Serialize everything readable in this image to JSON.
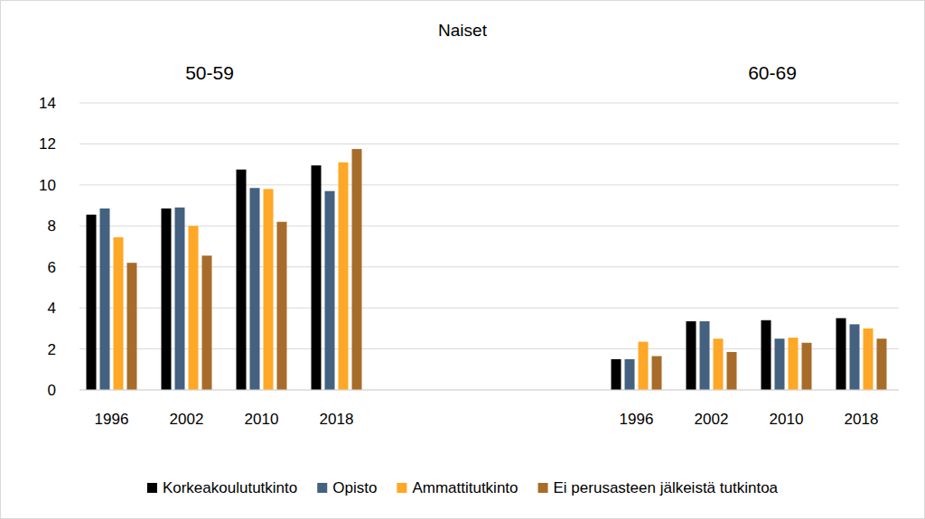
{
  "chart_data": {
    "type": "bar",
    "title": "Naiset",
    "annotations": [
      "50-59",
      "60-69"
    ],
    "categories": [
      "1996",
      "2002",
      "2010",
      "2018",
      null,
      null,
      null,
      "1996",
      "2002",
      "2010",
      "2018"
    ],
    "series": [
      {
        "name": "Korkeakoulututkinto",
        "color": "#000000",
        "values": [
          8.55,
          8.85,
          10.75,
          10.95,
          null,
          null,
          null,
          1.5,
          3.35,
          3.4,
          3.5
        ]
      },
      {
        "name": "Opisto",
        "color": "#44617f",
        "values": [
          8.85,
          8.9,
          9.85,
          9.7,
          null,
          null,
          null,
          1.5,
          3.35,
          2.5,
          3.2
        ]
      },
      {
        "name": "Ammattitutkinto",
        "color": "#ffa726",
        "values": [
          7.45,
          8.0,
          9.8,
          11.1,
          null,
          null,
          null,
          2.35,
          2.5,
          2.55,
          3.0
        ]
      },
      {
        "name": "Ei perusasteen jälkeistä tutkintoa",
        "color": "#a86c2a",
        "values": [
          6.2,
          6.55,
          8.2,
          11.75,
          null,
          null,
          null,
          1.65,
          1.85,
          2.3,
          2.5
        ]
      }
    ],
    "ylim": [
      0,
      14
    ],
    "yticks": [
      0,
      2,
      4,
      6,
      8,
      10,
      12,
      14
    ],
    "grid": true,
    "legend": "bottom"
  }
}
